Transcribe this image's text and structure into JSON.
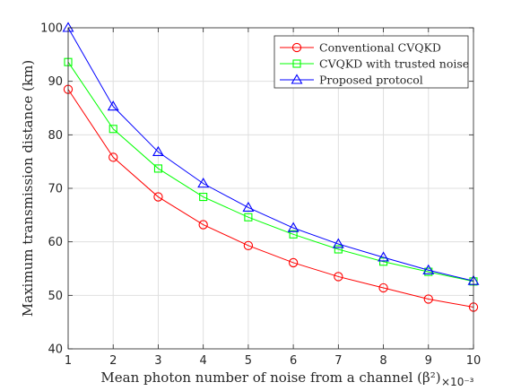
{
  "chart_data": {
    "type": "line",
    "title": "",
    "xlabel": "Mean photon number of noise from a channel (β²)",
    "ylabel": "Maximum transmission distance (km)",
    "x_multiplier": "×10⁻³",
    "xlim": [
      1,
      10
    ],
    "ylim": [
      40,
      100
    ],
    "x_ticks": [
      "1",
      "2",
      "3",
      "4",
      "5",
      "6",
      "7",
      "8",
      "9",
      "10"
    ],
    "y_ticks": [
      "40",
      "50",
      "60",
      "70",
      "80",
      "90",
      "100"
    ],
    "grid": true,
    "legend_position": "top-right",
    "x": [
      1,
      2,
      3,
      4,
      5,
      6,
      7,
      8,
      9,
      10
    ],
    "series": [
      {
        "name": "Conventional CVQKD",
        "color": "#ff0000",
        "marker": "circle",
        "values": [
          88.5,
          75.8,
          68.4,
          63.2,
          59.3,
          56.1,
          53.5,
          51.4,
          49.3,
          47.8
        ]
      },
      {
        "name": "CVQKD with trusted noise",
        "color": "#00ff00",
        "marker": "square",
        "values": [
          93.6,
          81.1,
          73.7,
          68.4,
          64.6,
          61.4,
          58.6,
          56.3,
          54.4,
          52.6
        ]
      },
      {
        "name": "Proposed protocol",
        "color": "#0000ff",
        "marker": "triangle",
        "values": [
          100.0,
          85.3,
          76.8,
          70.9,
          66.4,
          62.6,
          59.6,
          57.1,
          54.7,
          52.7
        ]
      }
    ]
  }
}
